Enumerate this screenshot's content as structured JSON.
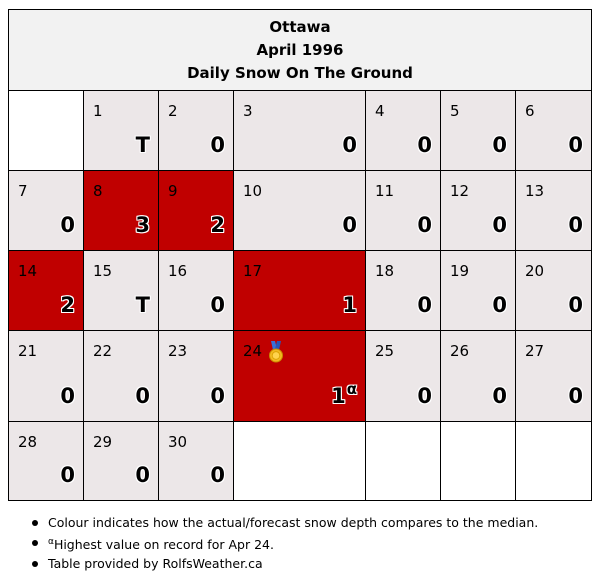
{
  "header": {
    "city": "Ottawa",
    "month": "April 1996",
    "subtitle": "Daily Snow On The Ground"
  },
  "colors": {
    "above_median": "#c00000",
    "near_median": "#ece7e8",
    "header_bg": "#f2f2f2",
    "empty": "#ffffff"
  },
  "calendar": {
    "weeks": [
      [
        {
          "empty": true
        },
        {
          "day": "1",
          "value": "T",
          "status": "median"
        },
        {
          "day": "2",
          "value": "0",
          "status": "median"
        },
        {
          "day": "3",
          "value": "0",
          "status": "median"
        },
        {
          "day": "4",
          "value": "0",
          "status": "median"
        },
        {
          "day": "5",
          "value": "0",
          "status": "median"
        },
        {
          "day": "6",
          "value": "0",
          "status": "median"
        }
      ],
      [
        {
          "day": "7",
          "value": "0",
          "status": "median"
        },
        {
          "day": "8",
          "value": "3",
          "status": "above"
        },
        {
          "day": "9",
          "value": "2",
          "status": "above"
        },
        {
          "day": "10",
          "value": "0",
          "status": "median"
        },
        {
          "day": "11",
          "value": "0",
          "status": "median"
        },
        {
          "day": "12",
          "value": "0",
          "status": "median"
        },
        {
          "day": "13",
          "value": "0",
          "status": "median"
        }
      ],
      [
        {
          "day": "14",
          "value": "2",
          "status": "above"
        },
        {
          "day": "15",
          "value": "T",
          "status": "median"
        },
        {
          "day": "16",
          "value": "0",
          "status": "median"
        },
        {
          "day": "17",
          "value": "1",
          "status": "above"
        },
        {
          "day": "18",
          "value": "0",
          "status": "median"
        },
        {
          "day": "19",
          "value": "0",
          "status": "median"
        },
        {
          "day": "20",
          "value": "0",
          "status": "median"
        }
      ],
      [
        {
          "day": "21",
          "value": "0",
          "status": "median"
        },
        {
          "day": "22",
          "value": "0",
          "status": "median"
        },
        {
          "day": "23",
          "value": "0",
          "status": "median"
        },
        {
          "day": "24",
          "value": "1",
          "marker": "α",
          "status": "above",
          "medal": "medal-icon"
        },
        {
          "day": "25",
          "value": "0",
          "status": "median"
        },
        {
          "day": "26",
          "value": "0",
          "status": "median"
        },
        {
          "day": "27",
          "value": "0",
          "status": "median"
        }
      ],
      [
        {
          "day": "28",
          "value": "0",
          "status": "median"
        },
        {
          "day": "29",
          "value": "0",
          "status": "median"
        },
        {
          "day": "30",
          "value": "0",
          "status": "median"
        },
        {
          "empty": true
        },
        {
          "empty": true
        },
        {
          "empty": true
        },
        {
          "empty": true
        }
      ]
    ]
  },
  "notes": {
    "colour_note": "Colour indicates how the actual/forecast snow depth compares to the median.",
    "record_marker": "α",
    "record_note": "Highest value on record for Apr 24.",
    "credit": "Table provided by RolfsWeather.ca"
  }
}
